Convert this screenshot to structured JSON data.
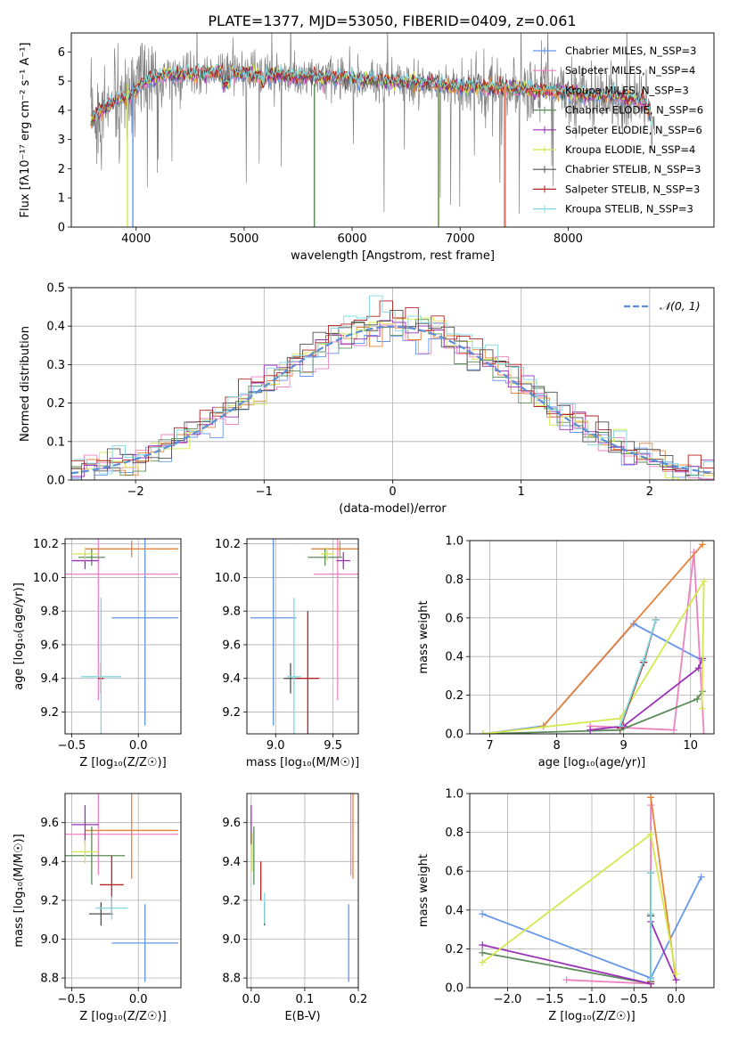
{
  "figure_title": "PLATE=1377, MJD=53050, FIBERID=0409, z=0.061",
  "colors": {
    "series": [
      "#6495ED",
      "#EE82C0",
      "#E8833A",
      "#5B8C5A",
      "#9B30B8",
      "#D4E84E",
      "#505050",
      "#B22222",
      "#7FD8E0"
    ],
    "data_line": "#808080",
    "gaussian": "#5B8ED6"
  },
  "chart_data": [
    {
      "type": "line",
      "id": "spectrum",
      "xlabel": "wavelength [Angstrom, rest frame]",
      "ylabel": "Flux [fλ10⁻¹⁷ erg cm⁻² s⁻¹ A⁻¹]",
      "xlim": [
        3400,
        9350
      ],
      "ylim": [
        0,
        6.65
      ],
      "xticks": [
        4000,
        5000,
        6000,
        7000,
        8000
      ],
      "yticks": [
        0,
        1,
        2,
        3,
        4,
        5,
        6
      ],
      "legend_position": "top-right",
      "series": [
        {
          "name": "Chabrier MILES, N_SSP=3"
        },
        {
          "name": "Salpeter MILES, N_SSP=4"
        },
        {
          "name": "Kroupa MILES, N_SSP=3"
        },
        {
          "name": "Chabrier ELODIE, N_SSP=6"
        },
        {
          "name": "Salpeter ELODIE, N_SSP=6"
        },
        {
          "name": "Kroupa ELODIE, N_SSP=4"
        },
        {
          "name": "Chabrier STELIB, N_SSP=3"
        },
        {
          "name": "Salpeter STELIB, N_SSP=3"
        },
        {
          "name": "Kroupa STELIB, N_SSP=3"
        }
      ],
      "model_profile": {
        "x": [
          3580,
          3650,
          3750,
          3850,
          3950,
          4050,
          4150,
          4300,
          4500,
          4700,
          4900,
          5100,
          5300,
          5500,
          5700,
          5900,
          6100,
          6300,
          6500,
          6700,
          6900,
          7100,
          7300,
          7500,
          7700,
          7900,
          8100,
          8300,
          8500,
          8700,
          8800
        ],
        "y": [
          3.6,
          3.9,
          4.2,
          4.4,
          4.5,
          4.9,
          5.1,
          5.2,
          5.25,
          5.3,
          5.3,
          5.2,
          5.2,
          5.15,
          5.1,
          5.1,
          5.05,
          5.0,
          4.95,
          4.9,
          4.85,
          4.8,
          4.75,
          4.75,
          4.7,
          4.65,
          4.55,
          4.5,
          4.45,
          4.3,
          3.5
        ]
      }
    },
    {
      "type": "line",
      "id": "residuals",
      "xlabel": "(data-model)/error",
      "ylabel": "Normed distribution",
      "xlim": [
        -2.5,
        2.5
      ],
      "ylim": [
        0,
        0.5
      ],
      "xticks": [
        -2,
        -1,
        0,
        1,
        2
      ],
      "yticks": [
        0.0,
        0.1,
        0.2,
        0.3,
        0.4,
        0.5
      ],
      "legend": "𝒩(0, 1)",
      "legend_position": "top-right",
      "bin_width": 0.1,
      "grid": true
    },
    {
      "type": "scatter",
      "id": "age_vs_Z",
      "xlabel": "Z [log₁₀(Z/Z☉)]",
      "ylabel": "age  [log₁₀(age/yr)]",
      "xlim": [
        -0.55,
        0.32
      ],
      "ylim": [
        9.07,
        10.23
      ],
      "xticks": [
        -0.5,
        0.0
      ],
      "yticks": [
        9.2,
        9.4,
        9.6,
        9.8,
        10.0,
        10.2
      ],
      "grid": true,
      "errorbars": [
        {
          "series": 0,
          "x": 0.05,
          "y": 9.76,
          "xerr": 0.25,
          "yerr": 0.64
        },
        {
          "series": 1,
          "x": -0.3,
          "y": 10.02,
          "xerr": 0.6,
          "yerr": 0.75
        },
        {
          "series": 2,
          "x": -0.05,
          "y": 10.17,
          "xerr": 0.35,
          "yerr": 0.05
        },
        {
          "series": 3,
          "x": -0.35,
          "y": 10.12,
          "xerr": 0.1,
          "yerr": 0.05
        },
        {
          "series": 4,
          "x": -0.4,
          "y": 10.1,
          "xerr": 0.1,
          "yerr": 0.05
        },
        {
          "series": 5,
          "x": -0.4,
          "y": 10.14,
          "xerr": 0.1,
          "yerr": 0.04
        },
        {
          "series": 6,
          "x": -0.28,
          "y": 9.4,
          "xerr": 0.02,
          "yerr": 0.09
        },
        {
          "series": 7,
          "x": -0.28,
          "y": 9.4,
          "xerr": 0.02,
          "yerr": 0.09
        },
        {
          "series": 8,
          "x": -0.28,
          "y": 9.41,
          "xerr": 0.15,
          "yerr": 0.47
        }
      ]
    },
    {
      "type": "scatter",
      "id": "age_vs_mass",
      "xlabel": "mass [log₁₀(M/M☉)]",
      "ylabel": "",
      "xlim": [
        8.75,
        9.72
      ],
      "ylim": [
        9.07,
        10.23
      ],
      "xticks": [
        9.0,
        9.5
      ],
      "yticks": [
        9.2,
        9.4,
        9.6,
        9.8,
        10.0,
        10.2
      ],
      "grid": true,
      "errorbars": [
        {
          "series": 0,
          "x": 8.98,
          "y": 9.76,
          "xerr": 0.2,
          "yerr": 0.64
        },
        {
          "series": 1,
          "x": 9.54,
          "y": 10.02,
          "xerr": 0.21,
          "yerr": 0.75
        },
        {
          "series": 2,
          "x": 9.56,
          "y": 10.17,
          "xerr": 0.25,
          "yerr": 0.05
        },
        {
          "series": 3,
          "x": 9.43,
          "y": 10.12,
          "xerr": 0.15,
          "yerr": 0.05
        },
        {
          "series": 4,
          "x": 9.59,
          "y": 10.1,
          "xerr": 0.06,
          "yerr": 0.05
        },
        {
          "series": 5,
          "x": 9.45,
          "y": 10.14,
          "xerr": 0.06,
          "yerr": 0.04
        },
        {
          "series": 6,
          "x": 9.13,
          "y": 9.4,
          "xerr": 0.06,
          "yerr": 0.09
        },
        {
          "series": 7,
          "x": 9.28,
          "y": 9.4,
          "xerr": 0.1,
          "yerr": 0.4
        },
        {
          "series": 8,
          "x": 9.16,
          "y": 9.41,
          "xerr": 0.06,
          "yerr": 0.47
        }
      ]
    },
    {
      "type": "line",
      "id": "weight_vs_age",
      "xlabel": "age  [log₁₀(age/yr)]",
      "ylabel": "mass weight",
      "xlim": [
        6.7,
        10.35
      ],
      "ylim": [
        0,
        1.0
      ],
      "xticks": [
        7,
        8,
        9,
        10
      ],
      "yticks": [
        0.0,
        0.2,
        0.4,
        0.6,
        0.8,
        1.0
      ],
      "grid": true,
      "series": [
        {
          "index": 0,
          "x": [
            6.9,
            7.8,
            9.15,
            10.17
          ],
          "y": [
            0.0,
            0.04,
            0.57,
            0.38
          ]
        },
        {
          "index": 1,
          "x": [
            8.5,
            9.75,
            10.05,
            10.2
          ],
          "y": [
            0.04,
            0.02,
            0.94,
            0.0
          ]
        },
        {
          "index": 2,
          "x": [
            7.8,
            10.18
          ],
          "y": [
            0.04,
            0.98
          ]
        },
        {
          "index": 3,
          "x": [
            6.9,
            8.95,
            10.1,
            10.18
          ],
          "y": [
            0.0,
            0.02,
            0.18,
            0.22
          ]
        },
        {
          "index": 4,
          "x": [
            8.5,
            9.0,
            10.12,
            10.18
          ],
          "y": [
            0.02,
            0.04,
            0.34,
            0.39
          ]
        },
        {
          "index": 5,
          "x": [
            6.9,
            8.95,
            10.2,
            10.17
          ],
          "y": [
            0.0,
            0.08,
            0.79,
            0.13
          ]
        },
        {
          "index": 6,
          "x": [
            8.95,
            9.3,
            9.48
          ],
          "y": [
            0.03,
            0.37,
            0.59
          ]
        },
        {
          "index": 7,
          "x": [
            8.95,
            9.3,
            9.48
          ],
          "y": [
            0.03,
            0.37,
            0.59
          ]
        },
        {
          "index": 8,
          "x": [
            8.95,
            9.3,
            9.48
          ],
          "y": [
            0.04,
            0.38,
            0.59
          ]
        }
      ]
    },
    {
      "type": "scatter",
      "id": "mass_vs_Z",
      "xlabel": "Z [log₁₀(Z/Z☉)]",
      "ylabel": "mass [log₁₀(M/M☉)]",
      "xlim": [
        -0.55,
        0.32
      ],
      "ylim": [
        8.75,
        9.75
      ],
      "xticks": [
        -0.5,
        0.0
      ],
      "yticks": [
        8.8,
        9.0,
        9.2,
        9.4,
        9.6
      ],
      "grid": true,
      "errorbars": [
        {
          "series": 0,
          "x": 0.05,
          "y": 8.98,
          "xerr": 0.25,
          "yerr": 0.2
        },
        {
          "series": 1,
          "x": -0.3,
          "y": 9.54,
          "xerr": 0.6,
          "yerr": 0.21
        },
        {
          "series": 2,
          "x": -0.05,
          "y": 9.56,
          "xerr": 0.35,
          "yerr": 0.25
        },
        {
          "series": 3,
          "x": -0.35,
          "y": 9.43,
          "xerr": 0.25,
          "yerr": 0.15
        },
        {
          "series": 4,
          "x": -0.4,
          "y": 9.59,
          "xerr": 0.1,
          "yerr": 0.1
        },
        {
          "series": 5,
          "x": -0.4,
          "y": 9.45,
          "xerr": 0.1,
          "yerr": 0.06
        },
        {
          "series": 6,
          "x": -0.28,
          "y": 9.13,
          "xerr": 0.09,
          "yerr": 0.06
        },
        {
          "series": 7,
          "x": -0.2,
          "y": 9.28,
          "xerr": 0.09,
          "yerr": 0.15
        },
        {
          "series": 8,
          "x": -0.2,
          "y": 9.16,
          "xerr": 0.12,
          "yerr": 0.06
        }
      ]
    },
    {
      "type": "scatter",
      "id": "mass_vs_ebv",
      "xlabel": "E(B-V)",
      "ylabel": "",
      "xlim": [
        -0.008,
        0.2
      ],
      "ylim": [
        8.75,
        9.75
      ],
      "xticks": [
        0.0,
        0.1,
        0.2
      ],
      "yticks": [
        8.8,
        9.0,
        9.2,
        9.4,
        9.6
      ],
      "grid": true,
      "errorbars": [
        {
          "series": 0,
          "x": 0.182,
          "y": 8.98,
          "xerr": 0.001,
          "yerr": 0.2
        },
        {
          "series": 1,
          "x": 0.186,
          "y": 9.54,
          "xerr": 0.001,
          "yerr": 0.21
        },
        {
          "series": 2,
          "x": 0.19,
          "y": 9.56,
          "xerr": 0.001,
          "yerr": 0.25
        },
        {
          "series": 3,
          "x": 0.005,
          "y": 9.43,
          "xerr": 0.001,
          "yerr": 0.15
        },
        {
          "series": 4,
          "x": 0.0,
          "y": 9.59,
          "xerr": 0.001,
          "yerr": 0.1
        },
        {
          "series": 5,
          "x": 0.002,
          "y": 9.45,
          "xerr": 0.001,
          "yerr": 0.1
        },
        {
          "series": 6,
          "x": 0.025,
          "y": 9.13,
          "xerr": 0.001,
          "yerr": 0.06
        },
        {
          "series": 7,
          "x": 0.018,
          "y": 9.3,
          "xerr": 0.001,
          "yerr": 0.1
        },
        {
          "series": 8,
          "x": 0.025,
          "y": 9.16,
          "xerr": 0.001,
          "yerr": 0.08
        }
      ]
    },
    {
      "type": "line",
      "id": "weight_vs_Z",
      "xlabel": "Z [log₁₀(Z/Z☉)]",
      "ylabel": "mass weight",
      "xlim": [
        -2.45,
        0.45
      ],
      "ylim": [
        0,
        1.0
      ],
      "xticks": [
        -2.0,
        -1.5,
        -1.0,
        -0.5,
        0.0
      ],
      "yticks": [
        0.0,
        0.2,
        0.4,
        0.6,
        0.8,
        1.0
      ],
      "grid": true,
      "series": [
        {
          "index": 0,
          "x": [
            -2.3,
            -0.3,
            0.3
          ],
          "y": [
            0.38,
            0.05,
            0.57
          ]
        },
        {
          "index": 1,
          "x": [
            -1.3,
            -0.3,
            -0.3
          ],
          "y": [
            0.04,
            0.02,
            0.94
          ]
        },
        {
          "index": 2,
          "x": [
            -0.3,
            -0.3,
            0.0
          ],
          "y": [
            0.98,
            0.98,
            0.04
          ]
        },
        {
          "index": 3,
          "x": [
            -2.3,
            -0.3,
            -0.3
          ],
          "y": [
            0.18,
            0.02,
            0.37
          ]
        },
        {
          "index": 4,
          "x": [
            -2.3,
            -0.3,
            -0.3,
            0.0
          ],
          "y": [
            0.22,
            0.02,
            0.34,
            0.04
          ]
        },
        {
          "index": 5,
          "x": [
            -2.3,
            -0.3,
            0.0
          ],
          "y": [
            0.13,
            0.79,
            0.07
          ]
        },
        {
          "index": 6,
          "x": [
            -0.3,
            -0.3,
            -0.3
          ],
          "y": [
            0.03,
            0.37,
            0.59
          ]
        },
        {
          "index": 7,
          "x": [
            -0.3,
            -0.3,
            -0.3
          ],
          "y": [
            0.03,
            0.38,
            0.59
          ]
        },
        {
          "index": 8,
          "x": [
            -0.3,
            -0.3,
            -0.3
          ],
          "y": [
            0.04,
            0.38,
            0.59
          ]
        }
      ]
    }
  ]
}
